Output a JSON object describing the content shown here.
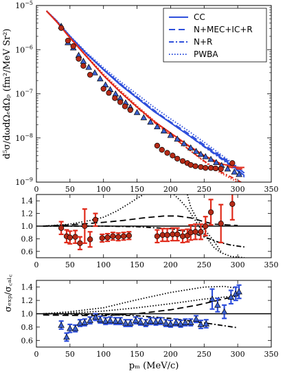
{
  "chart_data": [
    {
      "panel": "top",
      "type": "line",
      "ylabel": "d⁵σ/dωdΩₑdΩₚ (fm²/MeV Sr²)",
      "xlim": [
        0,
        350
      ],
      "ylim": [
        1e-09,
        1e-05
      ],
      "log_y": true,
      "xticks": [
        0,
        50,
        100,
        150,
        200,
        250,
        300,
        350
      ],
      "yticks": [
        {
          "value": 1e-09,
          "label_base": "10",
          "label_exp": "−9"
        },
        {
          "value": 1e-08,
          "label_base": "10",
          "label_exp": "−8"
        },
        {
          "value": 1e-07,
          "label_base": "10",
          "label_exp": "−7"
        },
        {
          "value": 1e-06,
          "label_base": "10",
          "label_exp": "−6"
        },
        {
          "value": 1e-05,
          "label_base": "10",
          "label_exp": "−5"
        }
      ],
      "legend": {
        "placement": "top-right",
        "entries": [
          {
            "label": "CC",
            "style": "solid"
          },
          {
            "label": "N+MEC+IC+R",
            "style": "dashed"
          },
          {
            "label": "N+R",
            "style": "dashdot"
          },
          {
            "label": "PWBA",
            "style": "dotted"
          }
        ]
      },
      "colors": {
        "blue": "#2e4fdb",
        "red": "#e02a1a"
      },
      "series": [
        {
          "kinematics": "blue",
          "model": "CC",
          "style": "solid",
          "x": [
            15,
            30,
            50,
            75,
            100,
            125,
            150,
            175,
            200,
            225,
            250,
            275,
            300,
            310
          ],
          "y": [
            7.5e-06,
            4.5e-06,
            2e-06,
            8e-07,
            3.5e-07,
            1.6e-07,
            8e-08,
            4e-08,
            2.2e-08,
            1.2e-08,
            6.5e-09,
            3.6e-09,
            1.9e-09,
            1.4e-09
          ]
        },
        {
          "kinematics": "blue",
          "model": "N+MEC+IC+R",
          "style": "dashed",
          "x": [
            15,
            30,
            50,
            75,
            100,
            125,
            150,
            175,
            200,
            225,
            250,
            275,
            300,
            310
          ],
          "y": [
            7.5e-06,
            4.5e-06,
            2e-06,
            8.1e-07,
            3.55e-07,
            1.65e-07,
            8.3e-08,
            4.2e-08,
            2.3e-08,
            1.3e-08,
            7e-09,
            3.9e-09,
            2.1e-09,
            1.6e-09
          ]
        },
        {
          "kinematics": "blue",
          "model": "N+R",
          "style": "dashdot",
          "x": [
            15,
            30,
            50,
            75,
            100,
            125,
            150,
            175,
            200,
            225,
            250,
            275,
            300,
            310
          ],
          "y": [
            7.5e-06,
            4.5e-06,
            2e-06,
            8.1e-07,
            3.6e-07,
            1.7e-07,
            8.5e-08,
            4.3e-08,
            2.2e-08,
            1.2e-08,
            6.3e-09,
            3.4e-09,
            1.8e-09,
            1.3e-09
          ]
        },
        {
          "kinematics": "blue",
          "model": "PWBA",
          "style": "dotted",
          "x": [
            15,
            30,
            50,
            75,
            100,
            125,
            150,
            175,
            200,
            225,
            250,
            275,
            300,
            310
          ],
          "y": [
            7.6e-06,
            4.6e-06,
            2.05e-06,
            8.5e-07,
            3.9e-07,
            1.9e-07,
            9.8e-08,
            5e-08,
            2.7e-08,
            1.5e-08,
            8e-09,
            4.2e-09,
            2.2e-09,
            1.6e-09
          ]
        },
        {
          "kinematics": "red",
          "model": "CC",
          "style": "solid",
          "x": [
            15,
            30,
            50,
            75,
            100,
            125,
            150,
            175,
            200,
            225,
            250,
            275,
            300,
            310
          ],
          "y": [
            7.5e-06,
            4.3e-06,
            1.85e-06,
            6.9e-07,
            2.6e-07,
            1.1e-07,
            5e-08,
            2.4e-08,
            1.3e-08,
            7e-09,
            4e-09,
            2.6e-09,
            2.15e-09,
            2.15e-09
          ]
        },
        {
          "kinematics": "red",
          "model": "N+MEC+IC+R",
          "style": "dashed",
          "x": [
            15,
            30,
            50,
            75,
            100,
            125,
            150,
            175,
            200,
            225,
            250,
            275,
            300,
            310
          ],
          "y": [
            7.5e-06,
            4.3e-06,
            1.85e-06,
            6.9e-07,
            2.6e-07,
            1.1e-07,
            5e-08,
            2.4e-08,
            1.25e-08,
            6.8e-09,
            3.8e-09,
            2.4e-09,
            2e-09,
            2e-09
          ]
        },
        {
          "kinematics": "red",
          "model": "N+R",
          "style": "dashdot",
          "x": [
            15,
            30,
            50,
            75,
            100,
            125,
            150,
            175,
            200,
            225,
            250,
            275,
            300,
            310
          ],
          "y": [
            7.5e-06,
            4.3e-06,
            1.85e-06,
            6.9e-07,
            2.6e-07,
            1.1e-07,
            4.9e-08,
            2.3e-08,
            1.15e-08,
            5.8e-09,
            3e-09,
            1.7e-09,
            1.1e-09,
            9e-10
          ]
        },
        {
          "kinematics": "red",
          "model": "PWBA",
          "style": "dotted",
          "x": [
            15,
            30,
            50,
            75,
            100,
            125,
            150,
            175,
            200,
            225,
            250,
            275,
            300,
            310
          ],
          "y": [
            7.6e-06,
            4.4e-06,
            1.9e-06,
            7.2e-07,
            2.8e-07,
            1.2e-07,
            5.3e-08,
            2.5e-08,
            1.2e-08,
            5.8e-09,
            2.9e-09,
            1.6e-09,
            1e-09,
            8e-10
          ]
        }
      ],
      "data_points": [
        {
          "kinematics": "blue",
          "marker": "triangle",
          "x": [
            37,
            47,
            55,
            63,
            70,
            78,
            87,
            95,
            103,
            110,
            118,
            125,
            133,
            140,
            150,
            160,
            170,
            180,
            190,
            200,
            210,
            220,
            230,
            238,
            245,
            252,
            260,
            268,
            276,
            285,
            295,
            302
          ],
          "y": [
            3.4e-06,
            1.45e-06,
            1.1e-06,
            7.5e-07,
            5.5e-07,
            4e-07,
            3e-07,
            2.2e-07,
            1.6e-07,
            1.25e-07,
            1e-07,
            8e-08,
            6.3e-08,
            5e-08,
            3.8e-08,
            2.9e-08,
            2.3e-08,
            1.8e-08,
            1.45e-08,
            1.15e-08,
            9.5e-09,
            7.5e-09,
            6e-09,
            5e-09,
            4.3e-09,
            3.8e-09,
            3.3e-09,
            2.8e-09,
            2.4e-09,
            2e-09,
            1.7e-09,
            1.5e-09
          ]
        },
        {
          "kinematics": "red",
          "marker": "circle",
          "x": [
            37,
            47,
            55,
            63,
            70,
            80,
            100,
            108,
            117,
            125,
            132,
            140,
            180,
            187,
            195,
            203,
            210,
            218,
            225,
            230,
            237,
            245,
            252,
            260,
            267,
            275,
            292
          ],
          "y": [
            3.1e-06,
            1.6e-06,
            1.2e-06,
            6.2e-07,
            4.3e-07,
            2.7e-07,
            1.3e-07,
            1.05e-07,
            8e-08,
            6.5e-08,
            5.2e-08,
            4.3e-08,
            6.7e-09,
            5.4e-09,
            4.6e-09,
            4e-09,
            3.4e-09,
            3e-09,
            2.7e-09,
            2.45e-09,
            2.3e-09,
            2.2e-09,
            2.1e-09,
            2.1e-09,
            2.05e-09,
            2e-09,
            2.7e-09
          ]
        }
      ]
    },
    {
      "panel": "middle",
      "type": "scatter",
      "ylabel": "",
      "xlim": [
        0,
        350
      ],
      "ylim": [
        0.5,
        1.5
      ],
      "xticks": [
        0,
        50,
        100,
        150,
        200,
        250,
        300,
        350
      ],
      "yticks": [
        0.6,
        0.8,
        1.0,
        1.2,
        1.4
      ],
      "reference_line": 1.0,
      "series": [
        {
          "model": "N+MEC+IC+R",
          "style": "dashed",
          "x": [
            10,
            50,
            100,
            130,
            160,
            190,
            210,
            230,
            250,
            265,
            300
          ],
          "y": [
            1.0,
            1.02,
            1.06,
            1.09,
            1.13,
            1.16,
            1.16,
            1.13,
            1.07,
            1.03,
            1.01
          ]
        },
        {
          "model": "N+R",
          "style": "dashdot",
          "x": [
            10,
            100,
            150,
            200,
            230,
            250,
            270,
            290,
            310
          ],
          "y": [
            1.0,
            1.0,
            0.99,
            0.96,
            0.9,
            0.83,
            0.75,
            0.7,
            0.67
          ]
        },
        {
          "model": "PWBA",
          "style": "dotted",
          "x": [
            10,
            50,
            80,
            100,
            120,
            140,
            150,
            160
          ],
          "y": [
            1.0,
            1.03,
            1.09,
            1.14,
            1.24,
            1.37,
            1.44,
            1.5
          ]
        },
        {
          "model": "PWBA",
          "style": "dotted",
          "x": [
            205,
            215,
            225,
            235,
            245,
            255,
            265,
            275,
            290,
            310
          ],
          "y": [
            1.5,
            1.4,
            1.28,
            1.12,
            0.95,
            0.8,
            0.66,
            0.58,
            0.52,
            0.5
          ]
        },
        {
          "model": "PWBA",
          "style": "dotted",
          "x": [
            225,
            230,
            240,
            250,
            262,
            275
          ],
          "y": [
            1.5,
            1.3,
            1.1,
            0.95,
            0.8,
            0.6
          ]
        }
      ],
      "data_points": {
        "kinematics": "red",
        "marker": "circle",
        "x": [
          37,
          45,
          50,
          58,
          65,
          72,
          80,
          88,
          98,
          106,
          114,
          122,
          130,
          138,
          180,
          188,
          195,
          203,
          210,
          218,
          225,
          230,
          237,
          245,
          252,
          260,
          275,
          292
        ],
        "y": [
          0.97,
          0.84,
          0.82,
          0.83,
          0.73,
          1.0,
          0.79,
          1.1,
          0.81,
          0.82,
          0.84,
          0.83,
          0.84,
          0.85,
          0.84,
          0.86,
          0.86,
          0.87,
          0.87,
          0.84,
          0.85,
          0.9,
          0.91,
          0.91,
          1.0,
          1.22,
          1.04,
          1.35
        ],
        "err": [
          0.1,
          0.1,
          0.1,
          0.1,
          0.1,
          0.27,
          0.12,
          0.1,
          0.06,
          0.06,
          0.06,
          0.06,
          0.06,
          0.06,
          0.1,
          0.1,
          0.1,
          0.1,
          0.1,
          0.1,
          0.1,
          0.12,
          0.12,
          0.12,
          0.15,
          0.2,
          0.3,
          0.25
        ]
      }
    },
    {
      "panel": "bottom",
      "type": "scatter",
      "xlabel": "pₘ (MeV/c)",
      "ylabel": "σₑₓₚ/σ꜀ₐₗ꜀",
      "xlim": [
        0,
        350
      ],
      "ylim": [
        0.5,
        1.5
      ],
      "xticks": [
        0,
        50,
        100,
        150,
        200,
        250,
        300,
        350
      ],
      "yticks": [
        0.6,
        0.8,
        1.0,
        1.2,
        1.4
      ],
      "reference_line": 1.0,
      "series": [
        {
          "model": "N+MEC+IC+R",
          "style": "dashed",
          "x": [
            10,
            100,
            150,
            200,
            240,
            270,
            300
          ],
          "y": [
            0.98,
            0.97,
            1.0,
            1.06,
            1.13,
            1.2,
            1.27
          ]
        },
        {
          "model": "N+R",
          "style": "dashdot",
          "x": [
            10,
            100,
            150,
            200,
            230,
            260,
            280,
            300
          ],
          "y": [
            1.0,
            0.99,
            0.97,
            0.93,
            0.89,
            0.85,
            0.82,
            0.79
          ]
        },
        {
          "model": "PWBA",
          "style": "dotted",
          "x": [
            10,
            50,
            100,
            150,
            200,
            250,
            280,
            300
          ],
          "y": [
            1.0,
            1.03,
            1.09,
            1.21,
            1.32,
            1.4,
            1.41,
            1.38
          ]
        },
        {
          "model": "PWBA",
          "style": "dotted",
          "x": [
            10,
            50,
            100,
            150,
            200,
            250,
            280,
            300
          ],
          "y": [
            1.0,
            1.01,
            1.04,
            1.09,
            1.15,
            1.22,
            1.25,
            1.27
          ]
        }
      ],
      "data_points": {
        "kinematics": "blue",
        "marker": "triangle",
        "x": [
          37,
          45,
          50,
          58,
          65,
          72,
          80,
          88,
          95,
          103,
          110,
          118,
          125,
          133,
          140,
          148,
          155,
          163,
          170,
          178,
          185,
          193,
          200,
          208,
          215,
          222,
          230,
          238,
          245,
          253,
          262,
          270,
          280,
          290,
          297,
          302
        ],
        "y": [
          0.83,
          0.65,
          0.78,
          0.78,
          0.86,
          0.87,
          0.9,
          0.95,
          0.91,
          0.89,
          0.9,
          0.89,
          0.89,
          0.86,
          0.86,
          0.9,
          0.88,
          0.86,
          0.89,
          0.88,
          0.89,
          0.86,
          0.85,
          0.87,
          0.85,
          0.87,
          0.87,
          0.92,
          0.84,
          0.85,
          1.22,
          1.13,
          1.03,
          1.25,
          1.3,
          1.33
        ],
        "err": [
          0.06,
          0.06,
          0.06,
          0.05,
          0.05,
          0.05,
          0.05,
          0.05,
          0.05,
          0.05,
          0.05,
          0.05,
          0.05,
          0.05,
          0.05,
          0.05,
          0.05,
          0.05,
          0.05,
          0.05,
          0.05,
          0.05,
          0.05,
          0.05,
          0.05,
          0.05,
          0.05,
          0.05,
          0.06,
          0.06,
          0.15,
          0.1,
          0.1,
          0.1,
          0.1,
          0.1
        ]
      }
    }
  ]
}
